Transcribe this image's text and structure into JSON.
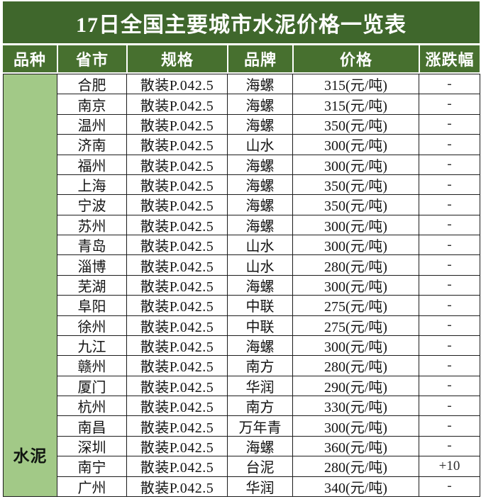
{
  "title": "17日全国主要城市水泥价格一览表",
  "colors": {
    "title_green": "#3f672c",
    "header_green": "#47702f",
    "category_green": "#a2c987",
    "header_text": "#ffffff",
    "body_text": "#141414",
    "grid_line": "#1d1d1d",
    "page_bg": "#ffffff"
  },
  "table": {
    "columns": [
      "品种",
      "省市",
      "规格",
      "品牌",
      "价格",
      "涨跌幅"
    ],
    "category": "水泥",
    "rows": [
      {
        "city": "合肥",
        "spec": "散装P.042.5",
        "brand": "海螺",
        "price": "315(元/吨)",
        "change": "-"
      },
      {
        "city": "南京",
        "spec": "散装P.042.5",
        "brand": "海螺",
        "price": "315(元/吨)",
        "change": "-"
      },
      {
        "city": "温州",
        "spec": "散装P.042.5",
        "brand": "海螺",
        "price": "350(元/吨)",
        "change": "-"
      },
      {
        "city": "济南",
        "spec": "散装P.042.5",
        "brand": "山水",
        "price": "300(元/吨)",
        "change": "-"
      },
      {
        "city": "福州",
        "spec": "散装P.042.5",
        "brand": "海螺",
        "price": "300(元/吨)",
        "change": "-"
      },
      {
        "city": "上海",
        "spec": "散装P.042.5",
        "brand": "海螺",
        "price": "350(元/吨)",
        "change": "-"
      },
      {
        "city": "宁波",
        "spec": "散装P.042.5",
        "brand": "海螺",
        "price": "350(元/吨)",
        "change": "-"
      },
      {
        "city": "苏州",
        "spec": "散装P.042.5",
        "brand": "海螺",
        "price": "300(元/吨)",
        "change": "-"
      },
      {
        "city": "青岛",
        "spec": "散装P.042.5",
        "brand": "山水",
        "price": "300(元/吨)",
        "change": "-"
      },
      {
        "city": "淄博",
        "spec": "散装P.042.5",
        "brand": "山水",
        "price": "280(元/吨)",
        "change": "-"
      },
      {
        "city": "芜湖",
        "spec": "散装P.042.5",
        "brand": "海螺",
        "price": "300(元/吨)",
        "change": "-"
      },
      {
        "city": "阜阳",
        "spec": "散装P.042.5",
        "brand": "中联",
        "price": "275(元/吨)",
        "change": "-"
      },
      {
        "city": "徐州",
        "spec": "散装P.042.5",
        "brand": "中联",
        "price": "275(元/吨)",
        "change": "-"
      },
      {
        "city": "九江",
        "spec": "散装P.042.5",
        "brand": "海螺",
        "price": "300(元/吨)",
        "change": "-"
      },
      {
        "city": "赣州",
        "spec": "散装P.042.5",
        "brand": "南方",
        "price": "280(元/吨)",
        "change": "-"
      },
      {
        "city": "厦门",
        "spec": "散装P.042.5",
        "brand": "华润",
        "price": "290(元/吨)",
        "change": "-"
      },
      {
        "city": "杭州",
        "spec": "散装P.042.5",
        "brand": "南方",
        "price": "330(元/吨)",
        "change": "-"
      },
      {
        "city": "南昌",
        "spec": "散装P.042.5",
        "brand": "万年青",
        "price": "300(元/吨)",
        "change": "-"
      },
      {
        "city": "深圳",
        "spec": "散装P.042.5",
        "brand": "海螺",
        "price": "360(元/吨)",
        "change": "-"
      },
      {
        "city": "南宁",
        "spec": "散装P.042.5",
        "brand": "台泥",
        "price": "280(元/吨)",
        "change": "+10"
      },
      {
        "city": "广州",
        "spec": "散装P.042.5",
        "brand": "华润",
        "price": "340(元/吨)",
        "change": "-"
      }
    ]
  }
}
